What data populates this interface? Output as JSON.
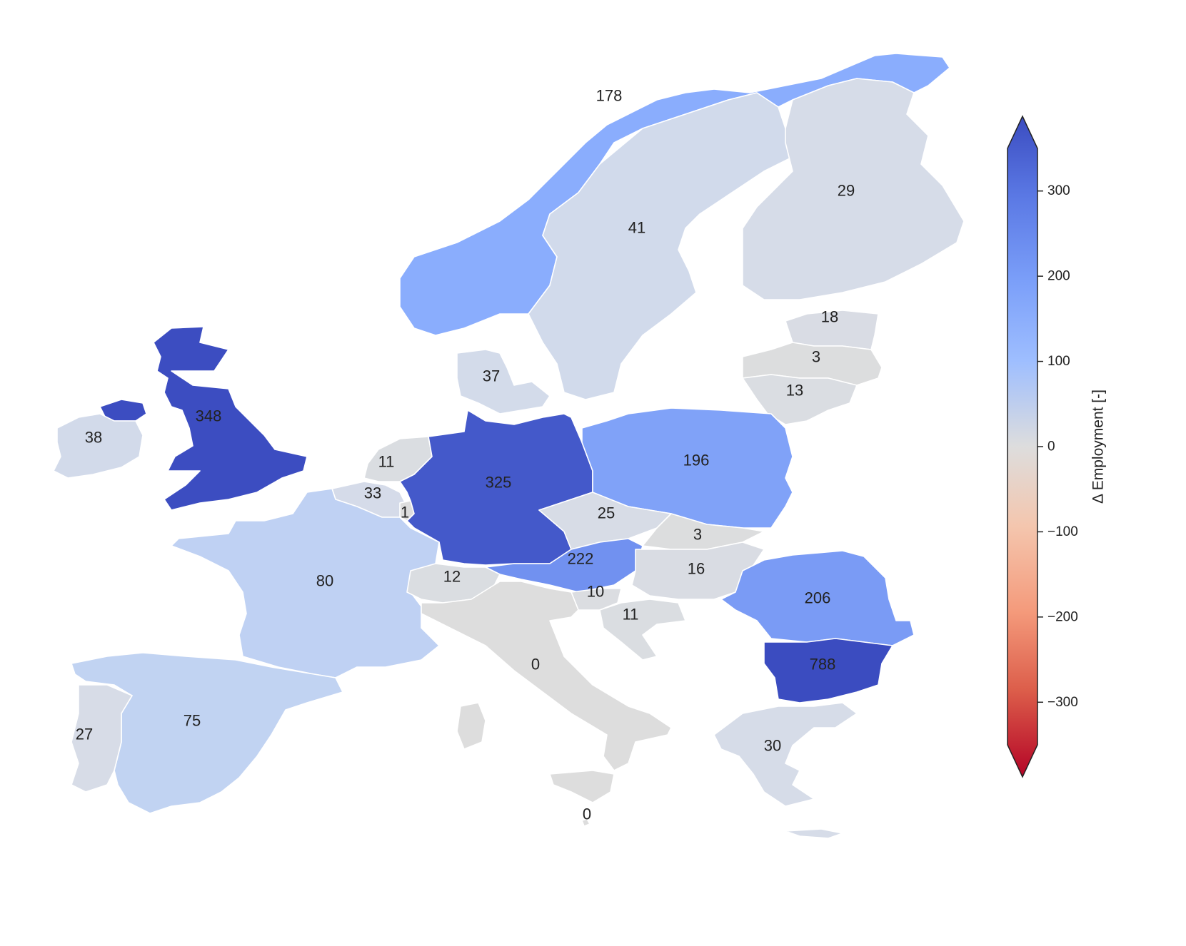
{
  "chart_data": {
    "type": "choropleth",
    "colorbar": {
      "label": "Δ Employment [-]",
      "range": [
        -350,
        350
      ],
      "ticks": [
        300,
        200,
        100,
        0,
        -100,
        -200,
        -300
      ],
      "tick_labels": [
        "300",
        "200",
        "100",
        "0",
        "−100",
        "−200",
        "−300"
      ],
      "colormap": "coolwarm_r",
      "extend": "both",
      "colors": {
        "high": "#3b4cc0",
        "mid": "#dddddd",
        "low": "#b40426"
      }
    },
    "regions": [
      {
        "id": "norway",
        "value": 178,
        "label": "178"
      },
      {
        "id": "sweden",
        "value": 41,
        "label": "41"
      },
      {
        "id": "finland",
        "value": 29,
        "label": "29"
      },
      {
        "id": "estonia",
        "value": 18,
        "label": "18"
      },
      {
        "id": "latvia",
        "value": 3,
        "label": "3"
      },
      {
        "id": "lithuania",
        "value": 13,
        "label": "13"
      },
      {
        "id": "denmark",
        "value": 37,
        "label": "37"
      },
      {
        "id": "united-kingdom",
        "value": 348,
        "label": "348"
      },
      {
        "id": "ireland",
        "value": 38,
        "label": "38"
      },
      {
        "id": "netherlands",
        "value": 11,
        "label": "11"
      },
      {
        "id": "belgium",
        "value": 33,
        "label": "33"
      },
      {
        "id": "luxembourg",
        "value": 1,
        "label": "1"
      },
      {
        "id": "germany",
        "value": 325,
        "label": "325"
      },
      {
        "id": "poland",
        "value": 196,
        "label": "196"
      },
      {
        "id": "czechia",
        "value": 25,
        "label": "25"
      },
      {
        "id": "slovakia",
        "value": 3,
        "label": "3"
      },
      {
        "id": "austria",
        "value": 222,
        "label": "222"
      },
      {
        "id": "hungary",
        "value": 16,
        "label": "16"
      },
      {
        "id": "romania",
        "value": 206,
        "label": "206"
      },
      {
        "id": "bulgaria",
        "value": 788,
        "label": "788"
      },
      {
        "id": "france",
        "value": 80,
        "label": "80"
      },
      {
        "id": "switzerland",
        "value": 12,
        "label": "12"
      },
      {
        "id": "slovenia",
        "value": 10,
        "label": "10"
      },
      {
        "id": "croatia",
        "value": 11,
        "label": "11"
      },
      {
        "id": "italy",
        "value": 0,
        "label": "0"
      },
      {
        "id": "spain",
        "value": 75,
        "label": "75"
      },
      {
        "id": "portugal",
        "value": 27,
        "label": "27"
      },
      {
        "id": "greece",
        "value": 30,
        "label": "30"
      },
      {
        "id": "malta",
        "value": 0,
        "label": "0"
      }
    ]
  }
}
